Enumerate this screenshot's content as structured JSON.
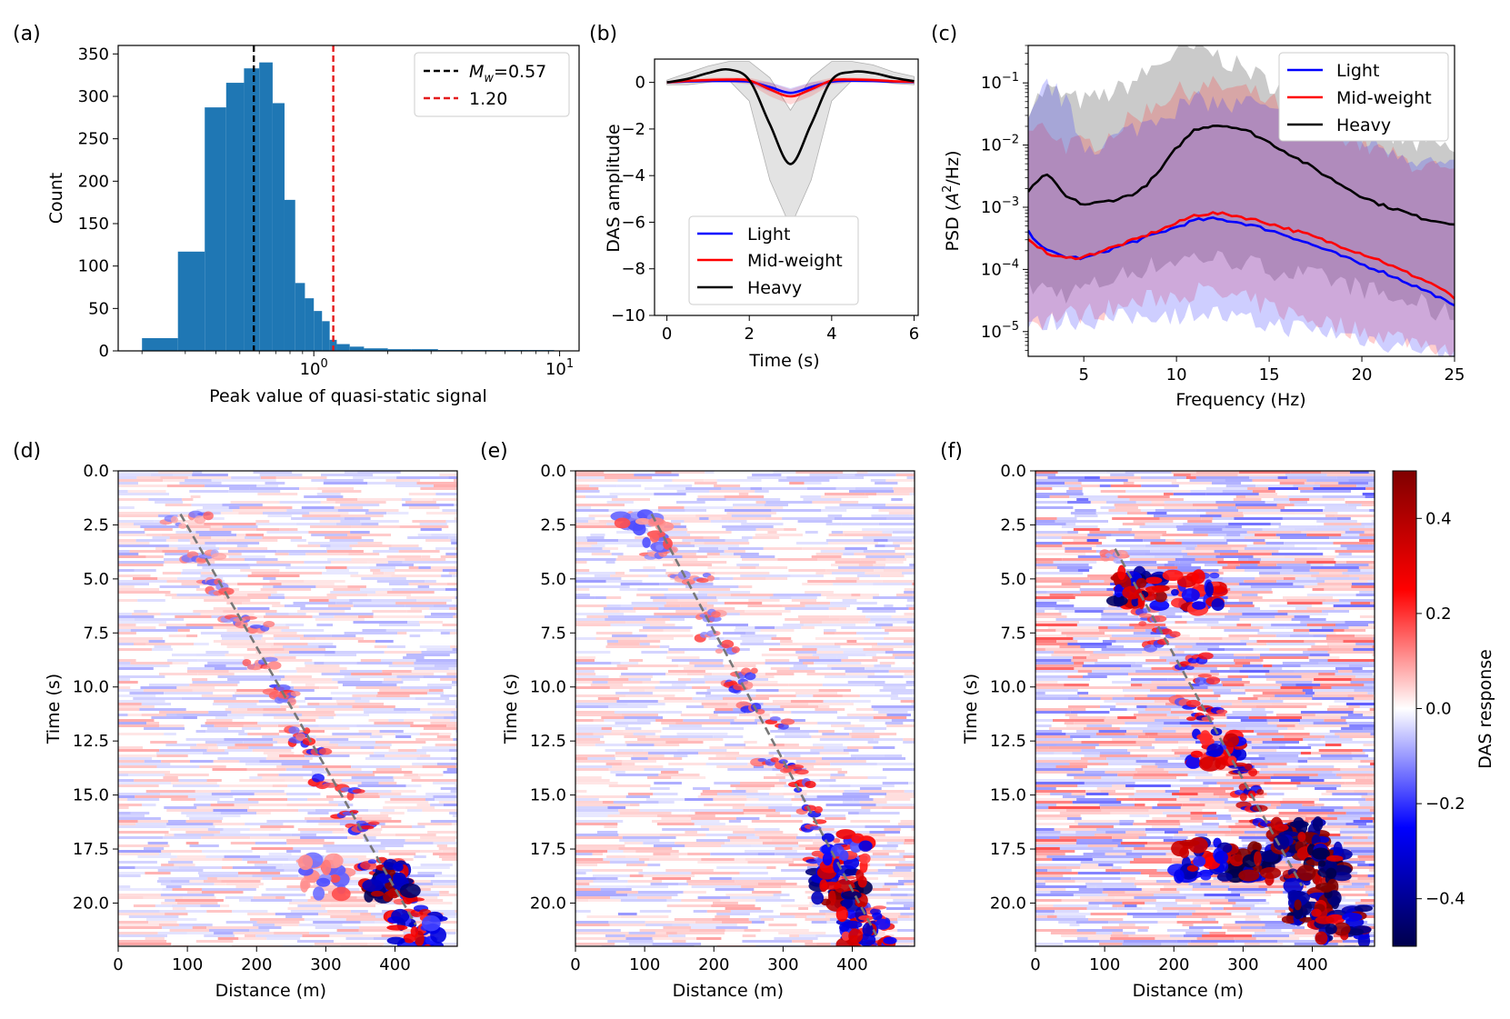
{
  "chart_data": [
    {
      "id": "a",
      "type": "bar",
      "panel_label": "(a)",
      "xlabel": "Peak value of quasi-static signal",
      "ylabel": "Count",
      "xscale": "log",
      "xlim": [
        0.16,
        12
      ],
      "ylim": [
        0,
        360
      ],
      "yticks": [
        "0",
        "50",
        "100",
        "150",
        "200",
        "250",
        "300",
        "350"
      ],
      "xticks": [
        {
          "base": "10",
          "exp": "0",
          "v": 1
        },
        {
          "base": "10",
          "exp": "1",
          "v": 10
        }
      ],
      "bins": [
        {
          "x0": 0.2,
          "x1": 0.28,
          "count": 15
        },
        {
          "x0": 0.28,
          "x1": 0.36,
          "count": 117
        },
        {
          "x0": 0.36,
          "x1": 0.44,
          "count": 287
        },
        {
          "x0": 0.44,
          "x1": 0.52,
          "count": 316
        },
        {
          "x0": 0.52,
          "x1": 0.6,
          "count": 333
        },
        {
          "x0": 0.6,
          "x1": 0.68,
          "count": 340
        },
        {
          "x0": 0.68,
          "x1": 0.76,
          "count": 292
        },
        {
          "x0": 0.76,
          "x1": 0.84,
          "count": 178
        },
        {
          "x0": 0.84,
          "x1": 0.92,
          "count": 80
        },
        {
          "x0": 0.92,
          "x1": 1.0,
          "count": 62
        },
        {
          "x0": 1.0,
          "x1": 1.08,
          "count": 47
        },
        {
          "x0": 1.08,
          "x1": 1.16,
          "count": 35
        },
        {
          "x0": 1.16,
          "x1": 1.24,
          "count": 13
        },
        {
          "x0": 1.24,
          "x1": 1.4,
          "count": 8
        },
        {
          "x0": 1.4,
          "x1": 1.6,
          "count": 5
        },
        {
          "x0": 1.6,
          "x1": 2.0,
          "count": 3
        },
        {
          "x0": 2.0,
          "x1": 2.5,
          "count": 2
        },
        {
          "x0": 2.5,
          "x1": 3.2,
          "count": 2
        },
        {
          "x0": 3.2,
          "x1": 4.2,
          "count": 1
        },
        {
          "x0": 4.2,
          "x1": 5.6,
          "count": 1
        },
        {
          "x0": 5.6,
          "x1": 7.5,
          "count": 1
        },
        {
          "x0": 7.5,
          "x1": 9.5,
          "count": 1
        }
      ],
      "vlines": [
        {
          "value": 0.57,
          "color": "#000000",
          "style": "dashed",
          "legend_prefix": "M",
          "legend_sub": "w",
          "legend_suffix": "=0.57"
        },
        {
          "value": 1.2,
          "color": "#e41a1c",
          "style": "dashed",
          "legend_label": "1.20"
        }
      ],
      "bar_color": "#1f77b4"
    },
    {
      "id": "b",
      "type": "line",
      "panel_label": "(b)",
      "xlabel": "Time (s)",
      "ylabel": "DAS amplitude",
      "xlim": [
        -0.3,
        6.1
      ],
      "ylim": [
        -10,
        1
      ],
      "xticks": [
        "0",
        "2",
        "4",
        "6"
      ],
      "yticks": [
        "0",
        "−2",
        "−4",
        "−6",
        "−8",
        "−10"
      ],
      "x": [
        0,
        0.5,
        1.0,
        1.5,
        2.0,
        2.5,
        3.0,
        3.5,
        4.0,
        4.5,
        5.0,
        5.5,
        6.0
      ],
      "series": [
        {
          "name": "Light",
          "color": "#0000ff",
          "values": [
            0,
            0.04,
            0.06,
            0.06,
            0.03,
            -0.2,
            -0.45,
            -0.2,
            0.03,
            0.07,
            0.06,
            0.03,
            0.01
          ],
          "band_upper": [
            0.05,
            0.1,
            0.12,
            0.12,
            0.1,
            0.0,
            -0.25,
            0.0,
            0.1,
            0.12,
            0.1,
            0.06,
            0.03
          ],
          "band_lower": [
            -0.05,
            -0.02,
            0.0,
            0.0,
            -0.05,
            -0.4,
            -0.65,
            -0.4,
            -0.05,
            0.0,
            0.0,
            -0.02,
            -0.02
          ]
        },
        {
          "name": "Mid-weight",
          "color": "#ff0000",
          "values": [
            0,
            0.06,
            0.1,
            0.12,
            0.08,
            -0.3,
            -0.6,
            -0.3,
            0.08,
            0.12,
            0.1,
            0.05,
            0.02
          ],
          "band_upper": [
            0.06,
            0.15,
            0.2,
            0.22,
            0.2,
            0.0,
            -0.3,
            0.0,
            0.2,
            0.22,
            0.18,
            0.1,
            0.05
          ],
          "band_lower": [
            -0.06,
            -0.03,
            0.0,
            0.0,
            -0.08,
            -0.6,
            -0.95,
            -0.6,
            -0.08,
            0.0,
            0.0,
            -0.03,
            -0.03
          ]
        },
        {
          "name": "Heavy",
          "color": "#000000",
          "values": [
            0,
            0.15,
            0.4,
            0.55,
            0.1,
            -1.8,
            -3.5,
            -1.8,
            0.1,
            0.45,
            0.4,
            0.2,
            0.05
          ],
          "band_upper": [
            0.1,
            0.4,
            0.7,
            0.9,
            0.9,
            0.2,
            -1.2,
            0.2,
            0.9,
            0.9,
            0.75,
            0.45,
            0.25
          ],
          "band_lower": [
            -0.1,
            -0.1,
            0.0,
            0.1,
            -0.8,
            -4.2,
            -6.2,
            -4.2,
            -0.8,
            0.1,
            0.05,
            -0.05,
            -0.1
          ]
        }
      ],
      "band_color": "#d9d9d9",
      "legend_position": "bottom"
    },
    {
      "id": "c",
      "type": "line",
      "panel_label": "(c)",
      "xlabel": "Frequency (Hz)",
      "ylabel_prefix": "PSD (",
      "ylabel_base": "A",
      "ylabel_exp": "2",
      "ylabel_suffix": "/Hz)",
      "yscale": "log",
      "xlim": [
        2,
        25
      ],
      "ylim": [
        4e-06,
        0.4
      ],
      "xticks": [
        "5",
        "10",
        "15",
        "20",
        "25"
      ],
      "yticks": [
        {
          "base": "10",
          "exp": "−5",
          "v": 1e-05
        },
        {
          "base": "10",
          "exp": "−4",
          "v": 0.0001
        },
        {
          "base": "10",
          "exp": "−3",
          "v": 0.001
        },
        {
          "base": "10",
          "exp": "−2",
          "v": 0.01
        },
        {
          "base": "10",
          "exp": "−1",
          "v": 0.1
        }
      ],
      "x": [
        2,
        3,
        4,
        5,
        6,
        7,
        8,
        9,
        10,
        11,
        12,
        13,
        14,
        15,
        16,
        17,
        18,
        19,
        20,
        21,
        22,
        23,
        24,
        25
      ],
      "series": [
        {
          "name": "Light",
          "color": "#0000ff",
          "values": [
            0.0004,
            0.0002,
            0.00016,
            0.00015,
            0.00019,
            0.00024,
            0.0003,
            0.00038,
            0.00048,
            0.00062,
            0.00065,
            0.0006,
            0.00052,
            0.00043,
            0.00035,
            0.00027,
            0.00021,
            0.00016,
            0.00012,
            9.5e-05,
            7e-05,
            5.2e-05,
            3.8e-05,
            2.5e-05
          ],
          "band_upper": [
            0.02,
            0.1,
            0.05,
            0.01,
            0.01,
            0.015,
            0.02,
            0.03,
            0.04,
            0.05,
            0.05,
            0.04,
            0.05,
            0.03,
            0.03,
            0.02,
            0.02,
            0.015,
            0.012,
            0.01,
            0.008,
            0.006,
            0.005,
            0.004
          ],
          "band_lower": [
            1.2e-05,
            1.4e-05,
            1.6e-05,
            1.5e-05,
            1.6e-05,
            1.6e-05,
            1.8e-05,
            2e-05,
            1.8e-05,
            2.2e-05,
            2e-05,
            1.6e-05,
            1.4e-05,
            1.3e-05,
            1.2e-05,
            1.1e-05,
            1e-05,
            9e-06,
            8e-06,
            7e-06,
            6e-06,
            6e-06,
            4.5e-06,
            3.5e-06
          ]
        },
        {
          "name": "Mid-weight",
          "color": "#ff0000",
          "values": [
            0.00032,
            0.00018,
            0.00015,
            0.00016,
            0.0002,
            0.00025,
            0.00032,
            0.00042,
            0.00055,
            0.00075,
            0.0008,
            0.00075,
            0.00065,
            0.00055,
            0.00045,
            0.00037,
            0.00029,
            0.00023,
            0.00018,
            0.00014,
            0.0001,
            7.5e-05,
            5.5e-05,
            3.4e-05
          ],
          "band_upper": [
            0.015,
            0.02,
            0.01,
            0.01,
            0.012,
            0.02,
            0.03,
            0.05,
            0.07,
            0.08,
            0.09,
            0.08,
            0.07,
            0.05,
            0.04,
            0.03,
            0.02,
            0.015,
            0.01,
            0.008,
            0.006,
            0.005,
            0.004,
            0.003
          ],
          "band_lower": [
            1.4e-05,
            1.6e-05,
            1.8e-05,
            2e-05,
            2.2e-05,
            2.5e-05,
            3e-05,
            3.5e-05,
            4e-05,
            4.5e-05,
            4e-05,
            3.5e-05,
            3e-05,
            2.5e-05,
            2e-05,
            1.7e-05,
            1.4e-05,
            1.2e-05,
            1e-05,
            9e-06,
            8e-06,
            7e-06,
            6e-06,
            5e-06
          ]
        },
        {
          "name": "Heavy",
          "color": "#000000",
          "values": [
            0.0018,
            0.0035,
            0.0015,
            0.0011,
            0.0012,
            0.0014,
            0.0018,
            0.0035,
            0.009,
            0.018,
            0.021,
            0.02,
            0.016,
            0.011,
            0.0075,
            0.005,
            0.0033,
            0.0022,
            0.0015,
            0.0011,
            0.0009,
            0.0007,
            0.0006,
            0.00055
          ],
          "band_upper": [
            0.04,
            0.08,
            0.06,
            0.05,
            0.06,
            0.08,
            0.12,
            0.2,
            0.3,
            0.35,
            0.3,
            0.2,
            0.15,
            0.1,
            0.08,
            0.06,
            0.05,
            0.03,
            0.02,
            0.015,
            0.012,
            0.01,
            0.01,
            0.008
          ],
          "band_lower": [
            5e-05,
            5e-05,
            4e-05,
            5e-05,
            6e-05,
            8e-05,
            0.0001,
            0.00012,
            0.00014,
            0.00016,
            0.00015,
            0.00014,
            0.00012,
            0.0001,
            9e-05,
            8e-05,
            7e-05,
            6e-05,
            5e-05,
            4e-05,
            3e-05,
            3e-05,
            2e-05,
            2e-05
          ]
        }
      ],
      "legend_position": "top-right"
    },
    {
      "id": "d",
      "type": "heatmap",
      "panel_label": "(d)",
      "xlabel": "Distance (m)",
      "ylabel": "Time (s)",
      "xlim": [
        0,
        490
      ],
      "ylim": [
        22,
        0
      ],
      "xticks": [
        "0",
        "100",
        "200",
        "300",
        "400"
      ],
      "yticks": [
        "0.0",
        "2.5",
        "5.0",
        "7.5",
        "10.0",
        "12.5",
        "15.0",
        "17.5",
        "20.0"
      ],
      "trend_line": {
        "x0": 90,
        "t0": 2.0,
        "x1": 430,
        "t1": 21.0
      },
      "strong_patches": [
        {
          "x": 390,
          "t": 19.0,
          "strength": 0.9
        },
        {
          "x": 430,
          "t": 21.3,
          "strength": 0.6
        },
        {
          "x": 300,
          "t": 18.8,
          "strength": 0.3
        }
      ]
    },
    {
      "id": "e",
      "type": "heatmap",
      "panel_label": "(e)",
      "xlabel": "Distance (m)",
      "ylabel": "Time (s)",
      "xlim": [
        0,
        490
      ],
      "ylim": [
        22,
        0
      ],
      "xticks": [
        "0",
        "100",
        "200",
        "300",
        "400"
      ],
      "yticks": [
        "0.0",
        "2.5",
        "5.0",
        "7.5",
        "10.0",
        "12.5",
        "15.0",
        "17.5",
        "20.0"
      ],
      "trend_line": {
        "x0": 110,
        "t0": 2.0,
        "x1": 435,
        "t1": 21.5
      },
      "strong_patches": [
        {
          "x": 380,
          "t": 19.3,
          "strength": 0.9
        },
        {
          "x": 420,
          "t": 21.3,
          "strength": 0.6
        },
        {
          "x": 390,
          "t": 17.5,
          "strength": 0.5
        },
        {
          "x": 100,
          "t": 2.8,
          "strength": 0.3
        }
      ]
    },
    {
      "id": "f",
      "type": "heatmap",
      "panel_label": "(f)",
      "xlabel": "Distance (m)",
      "ylabel": "Time (s)",
      "xlim": [
        0,
        490
      ],
      "ylim": [
        22,
        0
      ],
      "xticks": [
        "0",
        "100",
        "200",
        "300",
        "400"
      ],
      "yticks": [
        "0.0",
        "2.5",
        "5.0",
        "7.5",
        "10.0",
        "12.5",
        "15.0",
        "17.5",
        "20.0"
      ],
      "trend_line": {
        "x0": 115,
        "t0": 3.6,
        "x1": 385,
        "t1": 19.2
      },
      "strong_patches": [
        {
          "x": 150,
          "t": 5.5,
          "strength": 0.8
        },
        {
          "x": 230,
          "t": 5.6,
          "strength": 0.6
        },
        {
          "x": 260,
          "t": 12.8,
          "strength": 0.6
        },
        {
          "x": 310,
          "t": 18.1,
          "strength": 1.0
        },
        {
          "x": 380,
          "t": 17.0,
          "strength": 1.0
        },
        {
          "x": 420,
          "t": 18.3,
          "strength": 1.0
        },
        {
          "x": 400,
          "t": 20.0,
          "strength": 1.0
        },
        {
          "x": 440,
          "t": 21.0,
          "strength": 0.8
        },
        {
          "x": 240,
          "t": 18.0,
          "strength": 0.7
        }
      ],
      "colorbar": {
        "label": "DAS response",
        "range": [
          -0.5,
          0.5
        ],
        "ticks": [
          "0.4",
          "0.2",
          "0.0",
          "−0.2",
          "−0.4"
        ],
        "tick_values": [
          0.4,
          0.2,
          0.0,
          -0.2,
          -0.4
        ],
        "cmap": "seismic"
      }
    }
  ]
}
